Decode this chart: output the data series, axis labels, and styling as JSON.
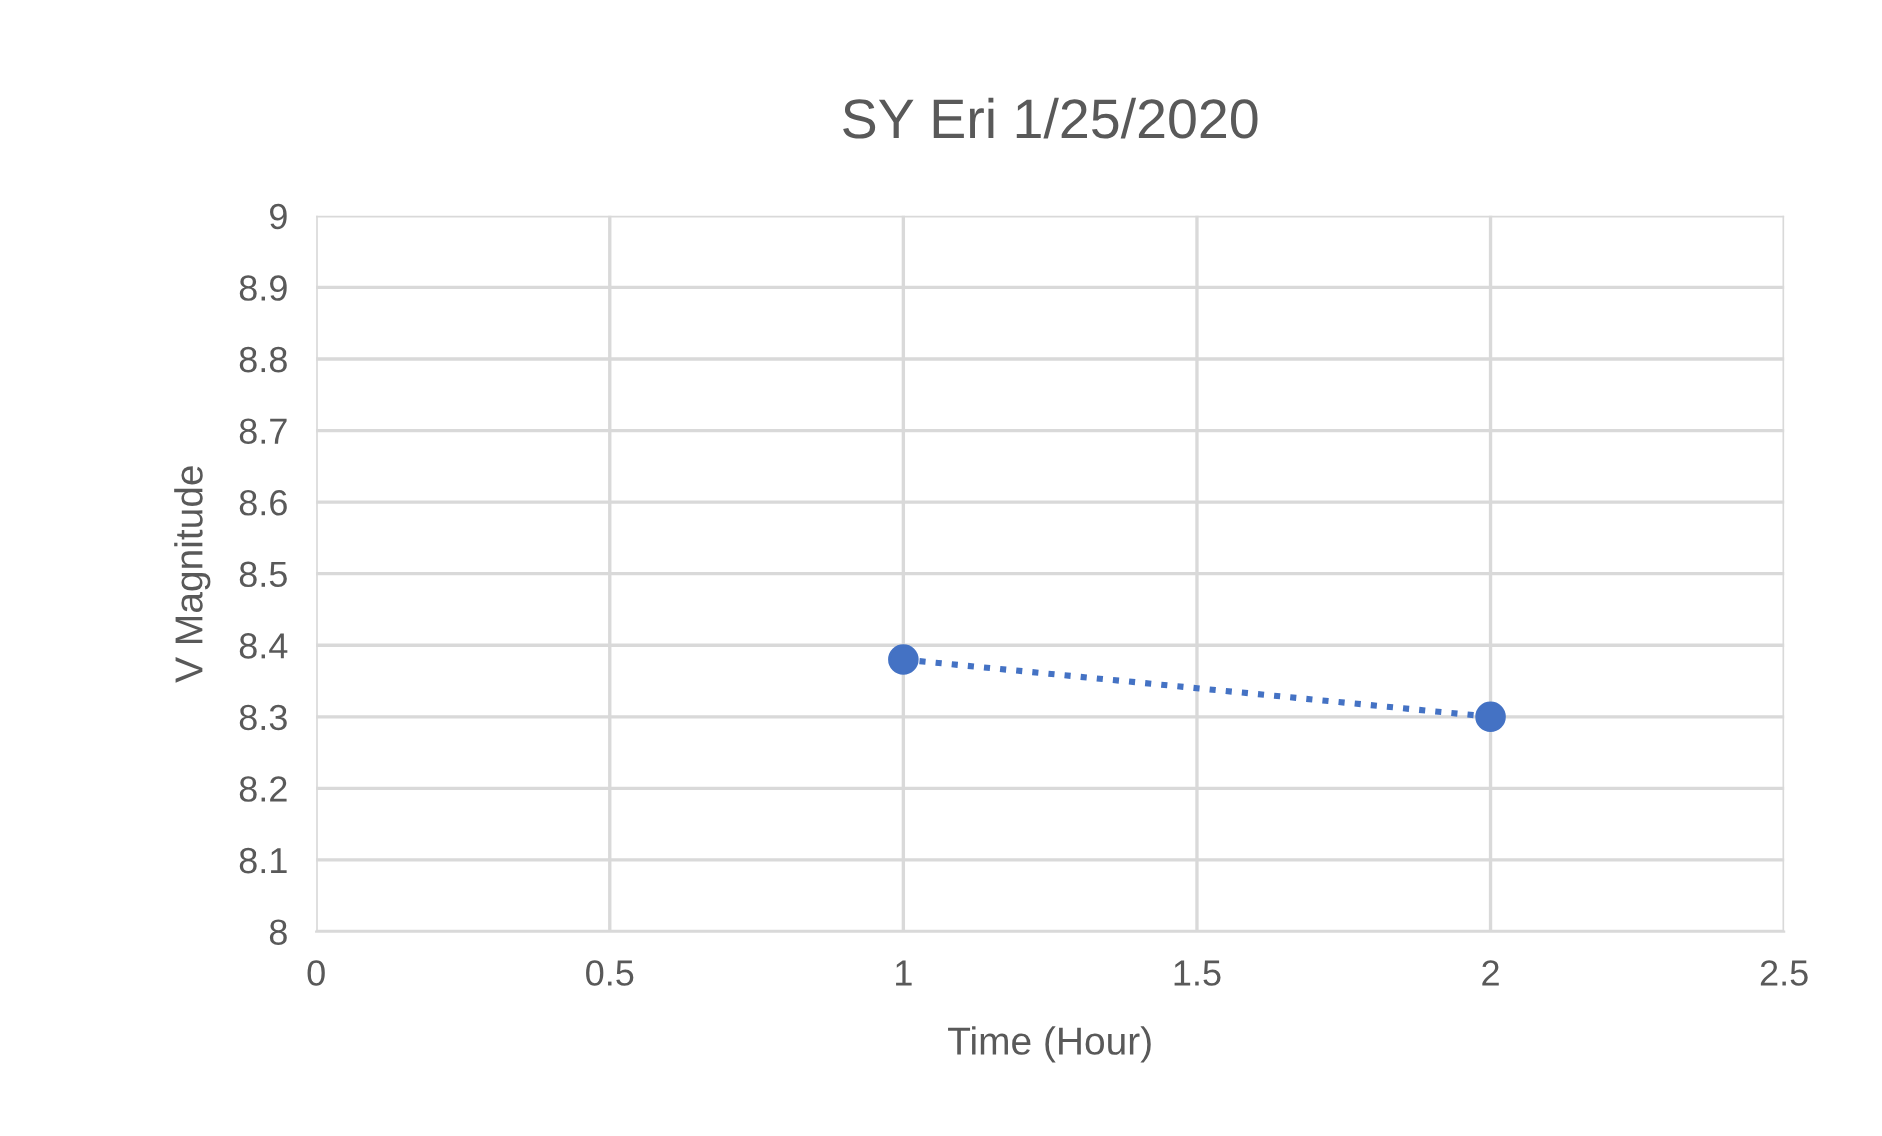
{
  "chart_data": {
    "type": "line",
    "title": "SY Eri 1/25/2020",
    "xlabel": "Time (Hour)",
    "ylabel": "V Magnitude",
    "x": [
      1,
      2
    ],
    "series": [
      {
        "color": "#4472c4",
        "values": [
          8.38,
          8.3
        ],
        "line_style": "dotted",
        "marker": "circle"
      }
    ],
    "xlim": [
      0,
      2.5
    ],
    "xticks": [
      0,
      0.5,
      1,
      1.5,
      2,
      2.5
    ],
    "ylim": [
      8,
      9
    ],
    "yticks": [
      8,
      8.1,
      8.2,
      8.3,
      8.4,
      8.5,
      8.6,
      8.7,
      8.8,
      8.9,
      9
    ],
    "grid": true
  }
}
